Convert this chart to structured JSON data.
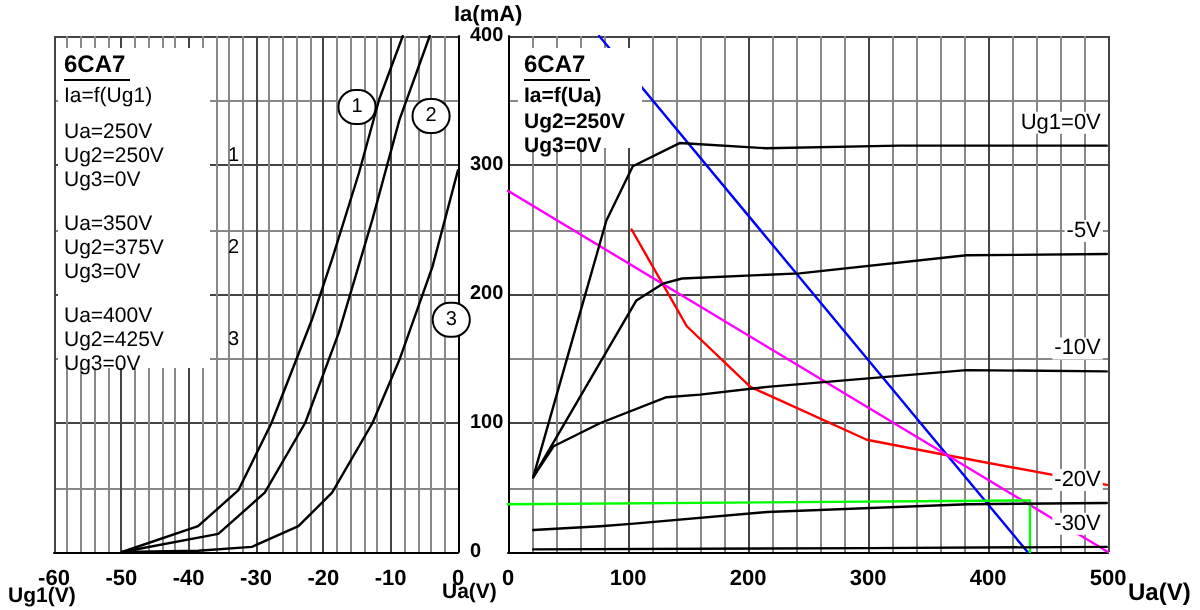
{
  "chart_data": [
    {
      "type": "line",
      "title": "6CA7",
      "subtitle": "Ia=f(Ug1)",
      "xlabel": "Ug1(V)",
      "ylabel": "Ia(mA)",
      "xlim": [
        -60,
        0
      ],
      "xticks": [
        -60,
        -50,
        -40,
        -30,
        -20,
        -10,
        0
      ],
      "ylim": [
        0,
        400
      ],
      "yticks": [
        0,
        100,
        200,
        300,
        400
      ],
      "grid": true,
      "marker": "none",
      "annotations": [
        "Ua=250V\nUg2=250V\nUg3=0V",
        "Ua=350V\nUg2=375V\nUg3=0V",
        "Ua=400V\nUg2=425V\nUg3=0V",
        "1",
        "2",
        "3",
        {
          "text": "1",
          "x": -15,
          "y": 345
        },
        {
          "text": "2",
          "x": -4,
          "y": 338
        },
        {
          "text": "3",
          "x": -1,
          "y": 180
        },
        "Ua(V)"
      ],
      "series": [
        {
          "color": "#000000",
          "x": [
            -49.9,
            -38.6,
            -32.6,
            -27.7,
            -21.7,
            -18.7,
            -14.7,
            -11.7,
            -8.2
          ],
          "values": [
            0,
            20,
            48,
            100,
            180,
            227,
            294,
            351,
            400
          ]
        },
        {
          "color": "#000000",
          "x": [
            -49.9,
            -35.6,
            -28.7,
            -22.7,
            -17.7,
            -12.7,
            -8.7,
            -4.2
          ],
          "values": [
            0,
            14,
            46,
            100,
            170,
            258,
            335,
            400
          ]
        },
        {
          "color": "#000000",
          "x": [
            -49.9,
            -38.6,
            -30.6,
            -23.7,
            -18.7,
            -12.7,
            -8.7,
            -3.8,
            0
          ],
          "values": [
            0,
            1,
            4,
            20,
            46,
            100,
            149,
            221,
            296
          ]
        }
      ]
    },
    {
      "type": "line",
      "title": "6CA7",
      "subtitle": "Ia=f(Ua)",
      "xlabel": "Ua(V)",
      "xlim": [
        0,
        500
      ],
      "xticks": [
        0,
        100,
        200,
        300,
        400,
        500
      ],
      "ylim": [
        0,
        400
      ],
      "yticks": [
        0,
        100,
        200,
        300,
        400
      ],
      "grid": true,
      "marker": "none",
      "tick_labels": "x",
      "annotations": [
        "Ug2=250V\nUg3=0V"
      ],
      "series": [
        {
          "name": "Ug1=0V",
          "color": "#000000",
          "x": [
            21,
            63,
            82,
            104,
            143,
            215,
            326,
            499
          ],
          "values": [
            58,
            195,
            257,
            299,
            317,
            313,
            315,
            315
          ]
        },
        {
          "name": "-5V",
          "color": "#000000",
          "x": [
            21,
            107,
            129,
            145,
            243,
            382,
            499
          ],
          "values": [
            58,
            195,
            208,
            212,
            216,
            230,
            231
          ]
        },
        {
          "name": "-10V",
          "color": "#000000",
          "x": [
            21,
            38,
            77,
            132,
            160,
            216,
            382,
            499
          ],
          "values": [
            58,
            82,
            100,
            120,
            122,
            128,
            141,
            140
          ]
        },
        {
          "name": "-20V",
          "color": "#000000",
          "x": [
            21,
            77,
            105,
            216,
            383,
            499
          ],
          "values": [
            17,
            20,
            22,
            31,
            37,
            38
          ]
        },
        {
          "name": "-30V",
          "color": "#000000",
          "x": [
            21,
            300,
            499
          ],
          "values": [
            2,
            3,
            4
          ]
        },
        {
          "color": "#ff0000",
          "x": [
            103,
            149,
            202,
            299,
            366,
            499
          ],
          "values": [
            250,
            175,
            128,
            87,
            75,
            52
          ]
        },
        {
          "color": "#0000ff",
          "x": [
            76,
            433
          ],
          "values": [
            400,
            0
          ]
        },
        {
          "color": "#ff00ff",
          "x": [
            0,
            500
          ],
          "values": [
            280,
            0
          ]
        },
        {
          "color": "#00ff00",
          "x": [
            0,
            435,
            435
          ],
          "values": [
            37,
            40,
            0
          ]
        }
      ]
    }
  ]
}
